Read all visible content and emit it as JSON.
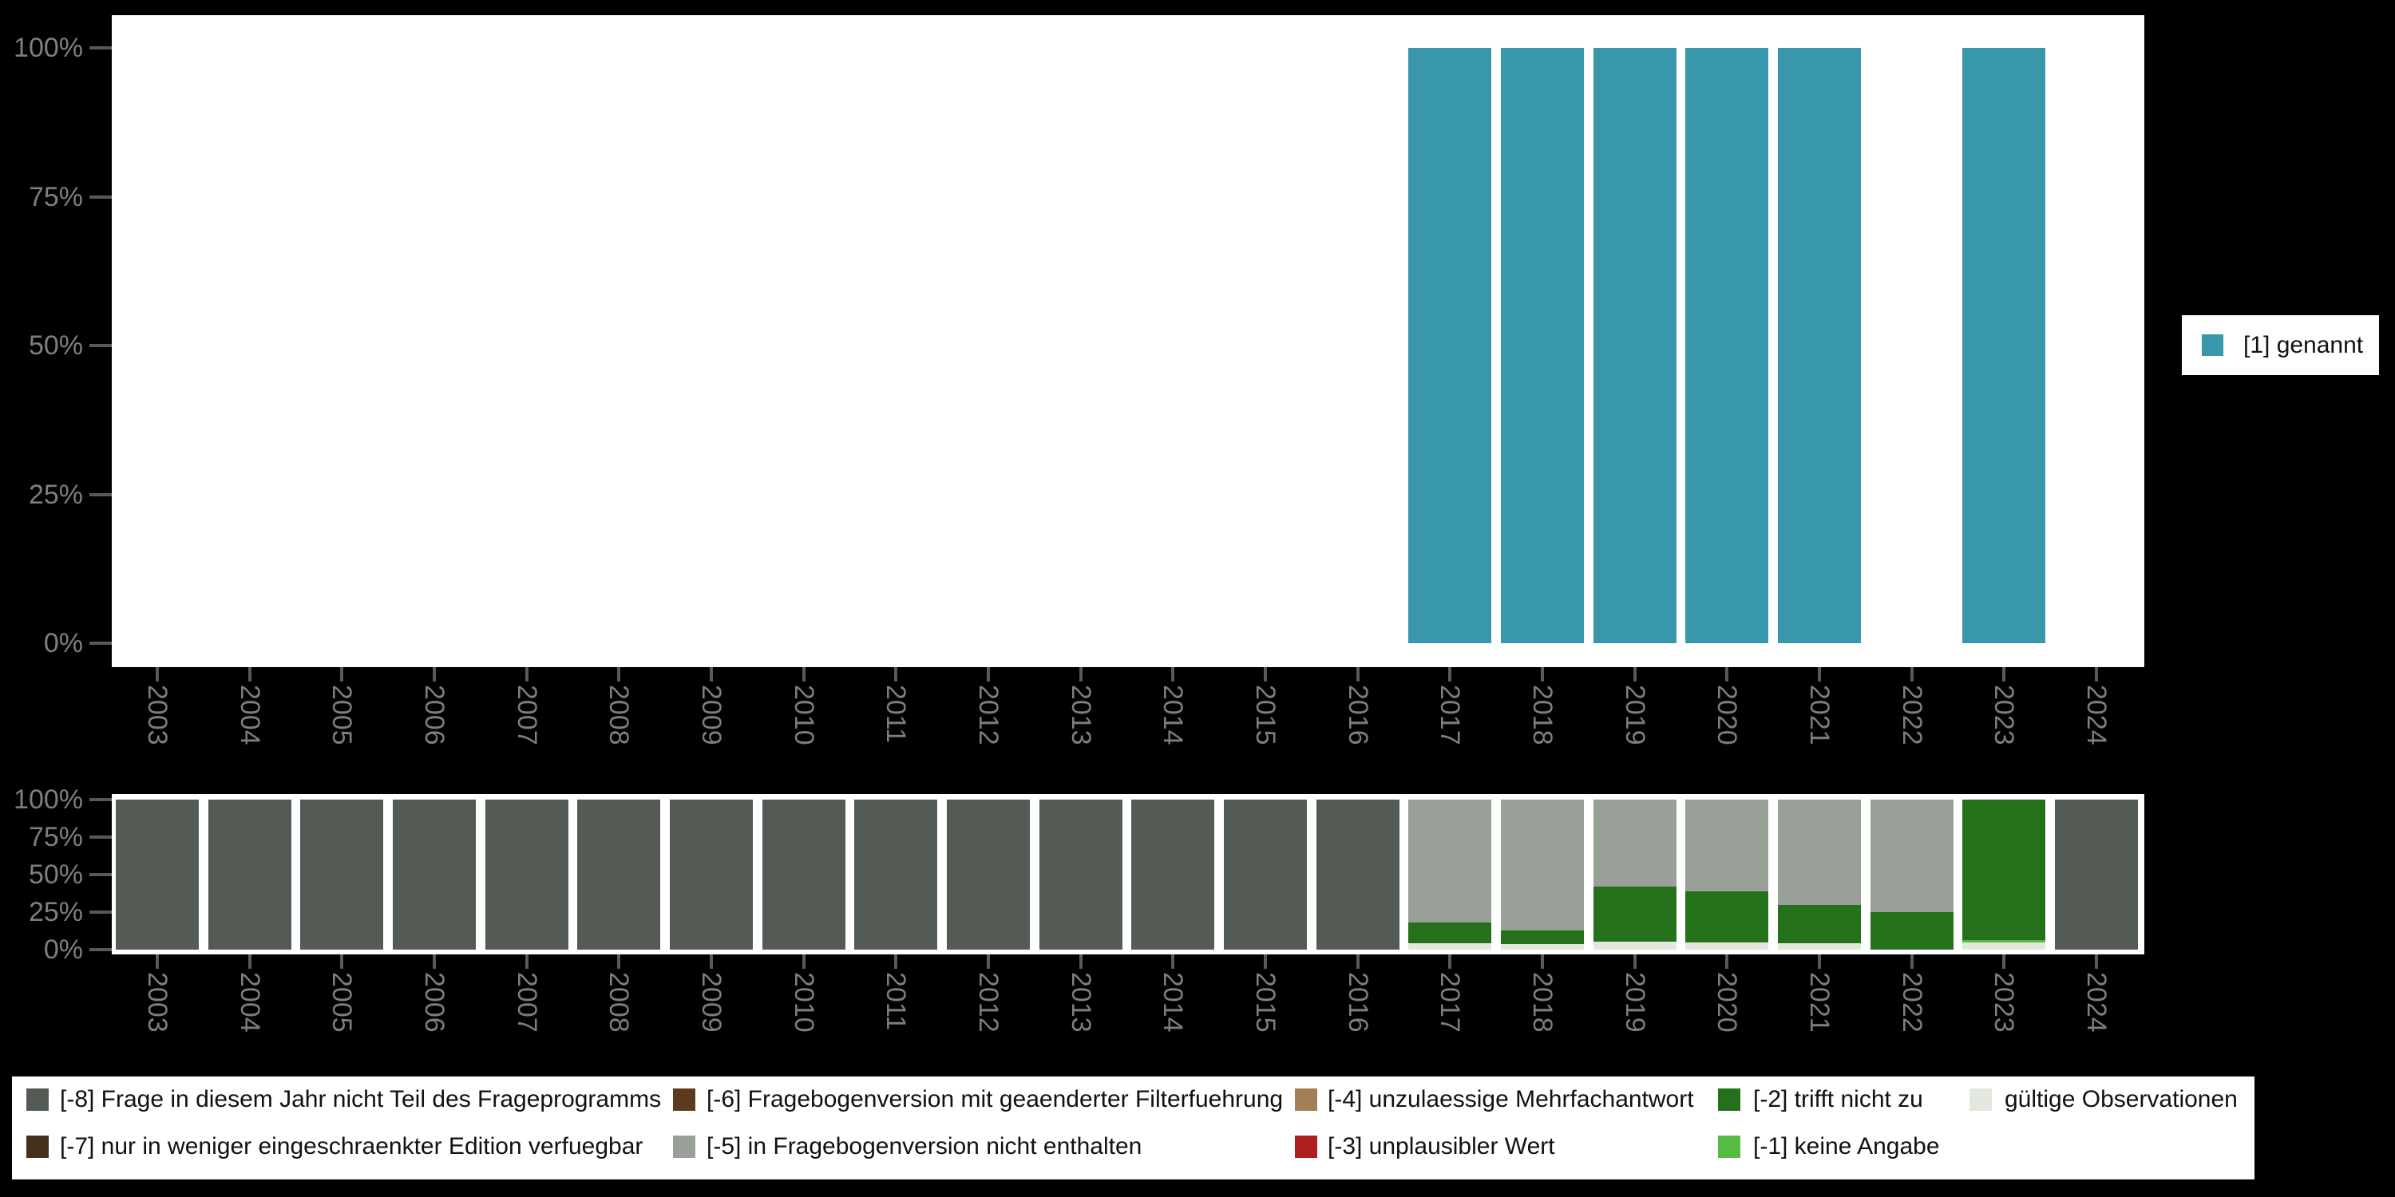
{
  "background_color": "#000000",
  "panel_color": "#ffffff",
  "axis_text_color": "#7e7e7e",
  "tick_color": "#595959",
  "top_legend": {
    "label": "[1] genannt",
    "color": "#3997ac"
  },
  "bottom_legend": {
    "items": [
      {
        "row": 0,
        "col": 0,
        "label": "[-8] Frage in diesem Jahr nicht Teil des Frageprogramms",
        "color": "#545b55"
      },
      {
        "row": 0,
        "col": 1,
        "label": "[-6] Fragebogenversion mit geaenderter Filterfuehrung",
        "color": "#5d3a1d"
      },
      {
        "row": 0,
        "col": 2,
        "label": "[-4] unzulaessige Mehrfachantwort",
        "color": "#a37f58"
      },
      {
        "row": 0,
        "col": 3,
        "label": "[-2] trifft nicht zu",
        "color": "#25701a"
      },
      {
        "row": 0,
        "col": 4,
        "label": "gültige Observationen",
        "color": "#e3e8df"
      },
      {
        "row": 1,
        "col": 0,
        "label": "[-7] nur in weniger eingeschraenkter Edition verfuegbar",
        "color": "#46301c"
      },
      {
        "row": 1,
        "col": 1,
        "label": "[-5] in Fragebogenversion nicht enthalten",
        "color": "#99a098"
      },
      {
        "row": 1,
        "col": 2,
        "label": "[-3] unplausibler Wert",
        "color": "#af1f1f"
      },
      {
        "row": 1,
        "col": 3,
        "label": "[-1] keine Angabe",
        "color": "#56bc43"
      }
    ]
  },
  "chart_data": [
    {
      "type": "bar",
      "title": "",
      "xlabel": "",
      "ylabel": "",
      "ylim": [
        0,
        100
      ],
      "yticks": [
        "0%",
        "25%",
        "50%",
        "75%",
        "100%"
      ],
      "grid": false,
      "legend_position": "right",
      "categories": [
        "2003",
        "2004",
        "2005",
        "2006",
        "2007",
        "2008",
        "2009",
        "2010",
        "2011",
        "2012",
        "2013",
        "2014",
        "2015",
        "2016",
        "2017",
        "2018",
        "2019",
        "2020",
        "2021",
        "2022",
        "2023",
        "2024"
      ],
      "series": [
        {
          "name": "[1] genannt",
          "color": "#3997ac",
          "values": [
            null,
            null,
            null,
            null,
            null,
            null,
            null,
            null,
            null,
            null,
            null,
            null,
            null,
            null,
            100,
            100,
            100,
            100,
            100,
            null,
            100,
            null
          ]
        }
      ]
    },
    {
      "type": "stacked_bar",
      "title": "",
      "xlabel": "",
      "ylabel": "",
      "ylim": [
        0,
        100
      ],
      "yticks": [
        "0%",
        "25%",
        "50%",
        "75%",
        "100%"
      ],
      "grid": false,
      "legend_position": "bottom",
      "stack_order": "bottom_to_top",
      "categories": [
        "2003",
        "2004",
        "2005",
        "2006",
        "2007",
        "2008",
        "2009",
        "2010",
        "2011",
        "2012",
        "2013",
        "2014",
        "2015",
        "2016",
        "2017",
        "2018",
        "2019",
        "2020",
        "2021",
        "2022",
        "2023",
        "2024"
      ],
      "series": [
        {
          "name": "gültige Observationen",
          "color": "#e3e8df",
          "values": [
            0,
            0,
            0,
            0,
            0,
            0,
            0,
            0,
            0,
            0,
            0,
            0,
            0,
            0,
            4.5,
            3.5,
            5.5,
            5,
            4.5,
            0,
            5,
            0
          ]
        },
        {
          "name": "[-1] keine Angabe",
          "color": "#56bc43",
          "values": [
            0,
            0,
            0,
            0,
            0,
            0,
            0,
            0,
            0,
            0,
            0,
            0,
            0,
            0,
            0,
            0,
            0,
            0,
            0,
            0,
            1.5,
            0
          ]
        },
        {
          "name": "[-2] trifft nicht zu",
          "color": "#25701a",
          "values": [
            0,
            0,
            0,
            0,
            0,
            0,
            0,
            0,
            0,
            0,
            0,
            0,
            0,
            0,
            13.5,
            9.5,
            36.5,
            34,
            25.5,
            25,
            93.5,
            0
          ]
        },
        {
          "name": "[-3] unplausibler Wert",
          "color": "#af1f1f",
          "values": [
            0,
            0,
            0,
            0,
            0,
            0,
            0,
            0,
            0,
            0,
            0,
            0,
            0,
            0,
            0,
            0,
            0,
            0,
            0,
            0,
            0,
            0
          ]
        },
        {
          "name": "[-4] unzulaessige Mehrfachantwort",
          "color": "#a37f58",
          "values": [
            0,
            0,
            0,
            0,
            0,
            0,
            0,
            0,
            0,
            0,
            0,
            0,
            0,
            0,
            0,
            0,
            0,
            0,
            0,
            0,
            0,
            0
          ]
        },
        {
          "name": "[-5] in Fragebogenversion nicht enthalten",
          "color": "#99a098",
          "values": [
            0,
            0,
            0,
            0,
            0,
            0,
            0,
            0,
            0,
            0,
            0,
            0,
            0,
            0,
            82,
            87,
            58,
            61,
            70,
            75,
            0,
            0
          ]
        },
        {
          "name": "[-6] Fragebogenversion mit geaenderter Filterfuehrung",
          "color": "#5d3a1d",
          "values": [
            0,
            0,
            0,
            0,
            0,
            0,
            0,
            0,
            0,
            0,
            0,
            0,
            0,
            0,
            0,
            0,
            0,
            0,
            0,
            0,
            0,
            0
          ]
        },
        {
          "name": "[-7] nur in weniger eingeschraenkter Edition verfuegbar",
          "color": "#46301c",
          "values": [
            0,
            0,
            0,
            0,
            0,
            0,
            0,
            0,
            0,
            0,
            0,
            0,
            0,
            0,
            0,
            0,
            0,
            0,
            0,
            0,
            0,
            0
          ]
        },
        {
          "name": "[-8] Frage in diesem Jahr nicht Teil des Frageprogramms",
          "color": "#545b55",
          "values": [
            100,
            100,
            100,
            100,
            100,
            100,
            100,
            100,
            100,
            100,
            100,
            100,
            100,
            100,
            0,
            0,
            0,
            0,
            0,
            0,
            0,
            100
          ]
        }
      ]
    }
  ]
}
